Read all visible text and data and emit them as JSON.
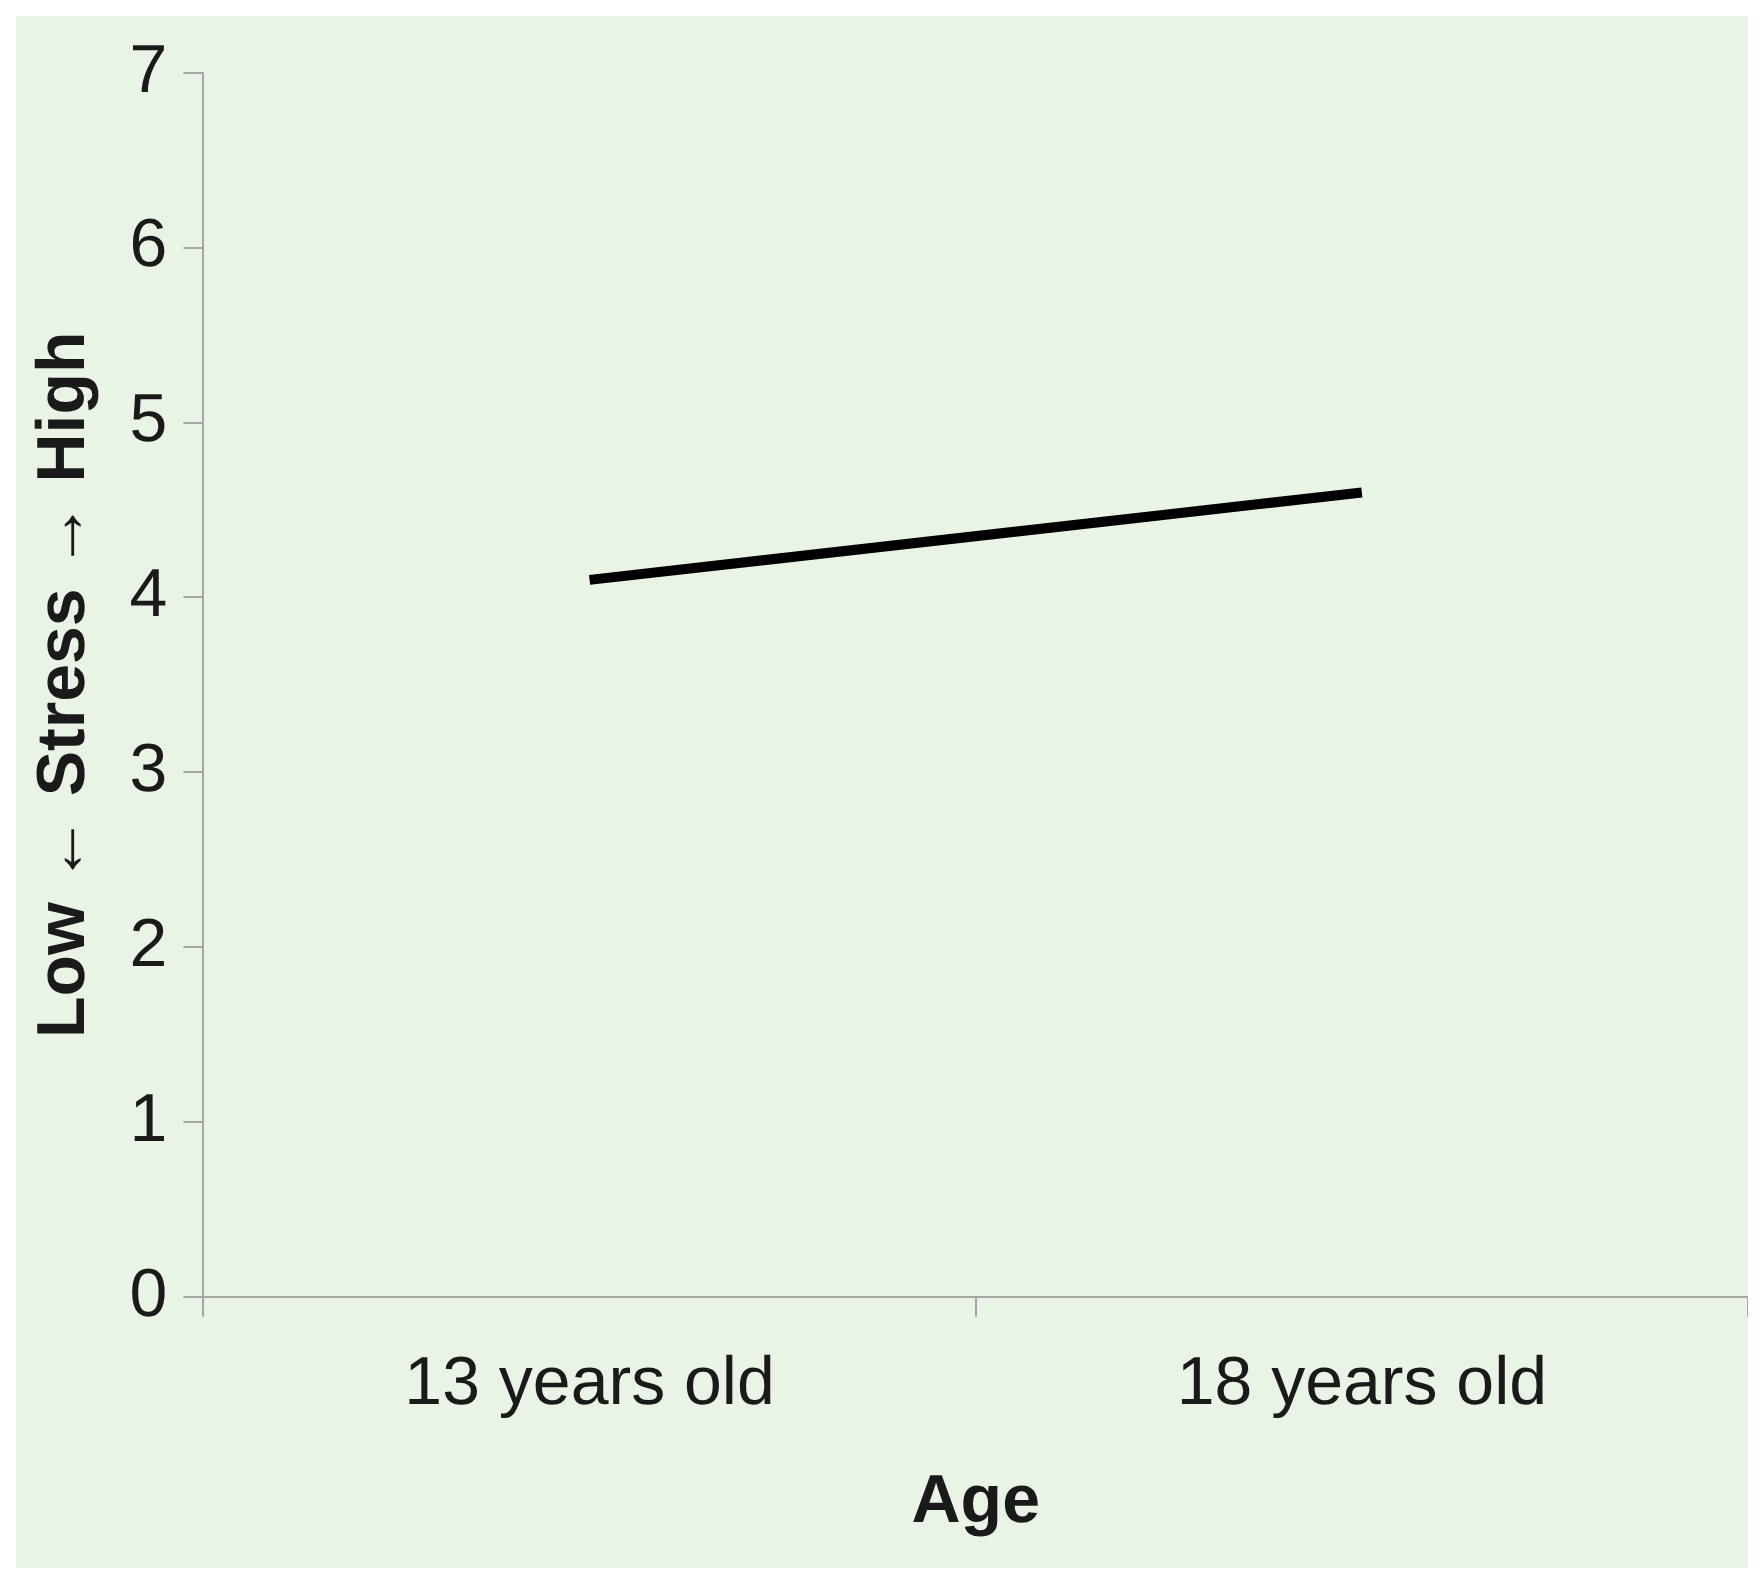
{
  "chart_data": {
    "type": "line",
    "xlabel": "Age",
    "ylabel": "Low ← Stress → High",
    "categories": [
      "13 years old",
      "18 years old"
    ],
    "series": [
      {
        "color": "#000000",
        "values": [
          4.1,
          4.6
        ]
      }
    ],
    "ylim": [
      0,
      7
    ],
    "yticks": [
      0,
      1,
      2,
      3,
      4,
      5,
      6,
      7
    ],
    "grid": false,
    "legend": false,
    "marker": "none",
    "line_style": "solid"
  }
}
